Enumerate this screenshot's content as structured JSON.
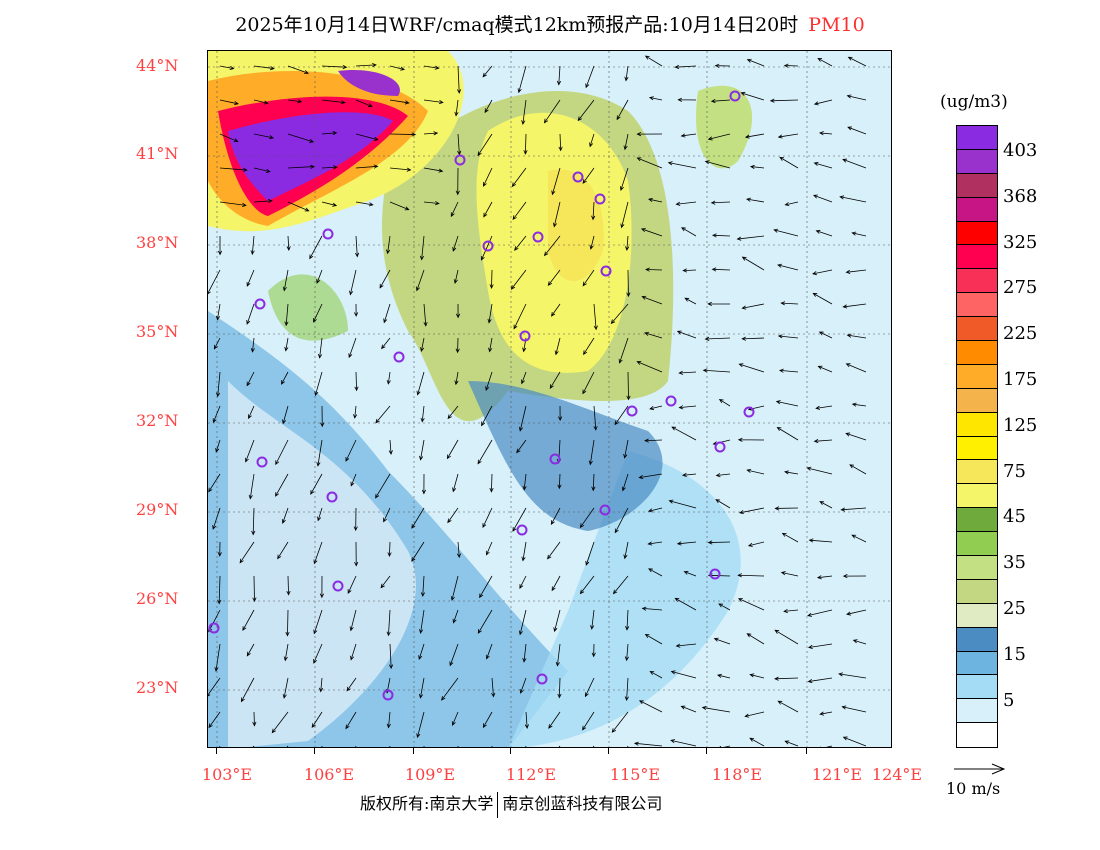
{
  "title": {
    "main": "2025年10月14日WRF/cmaq模式12km预报产品:10月14日20时",
    "pollutant": "PM10"
  },
  "axes": {
    "lat_labels": [
      "44°N",
      "41°N",
      "38°N",
      "35°N",
      "32°N",
      "29°N",
      "26°N",
      "23°N"
    ],
    "lon_labels": [
      "103°E",
      "106°E",
      "109°E",
      "112°E",
      "115°E",
      "118°E",
      "121°E",
      "124°E"
    ]
  },
  "legend": {
    "unit": "(ug/m3)",
    "colors": [
      "#8a2be2",
      "#9932cc",
      "#b03060",
      "#c71585",
      "#ff0000",
      "#ff0050",
      "#f83058",
      "#ff6464",
      "#f05a28",
      "#ff8c00",
      "#ffad28",
      "#f5b44b",
      "#ffe600",
      "#fff000",
      "#f5e65a",
      "#f5f569",
      "#6eaa3c",
      "#91cd50",
      "#c3e182",
      "#c3d782",
      "#e1ebc3",
      "#4b8cc3",
      "#6eb4e1",
      "#a5dcf5",
      "#d7f0fa",
      "#ffffff"
    ],
    "labels": [
      "403",
      "368",
      "325",
      "275",
      "225",
      "175",
      "125",
      "75",
      "45",
      "35",
      "25",
      "15",
      "5"
    ],
    "wind_reference": "10 m/s"
  },
  "footer": {
    "left": "版权所有:南京大学",
    "right": "南京创蓝科技有限公司"
  }
}
